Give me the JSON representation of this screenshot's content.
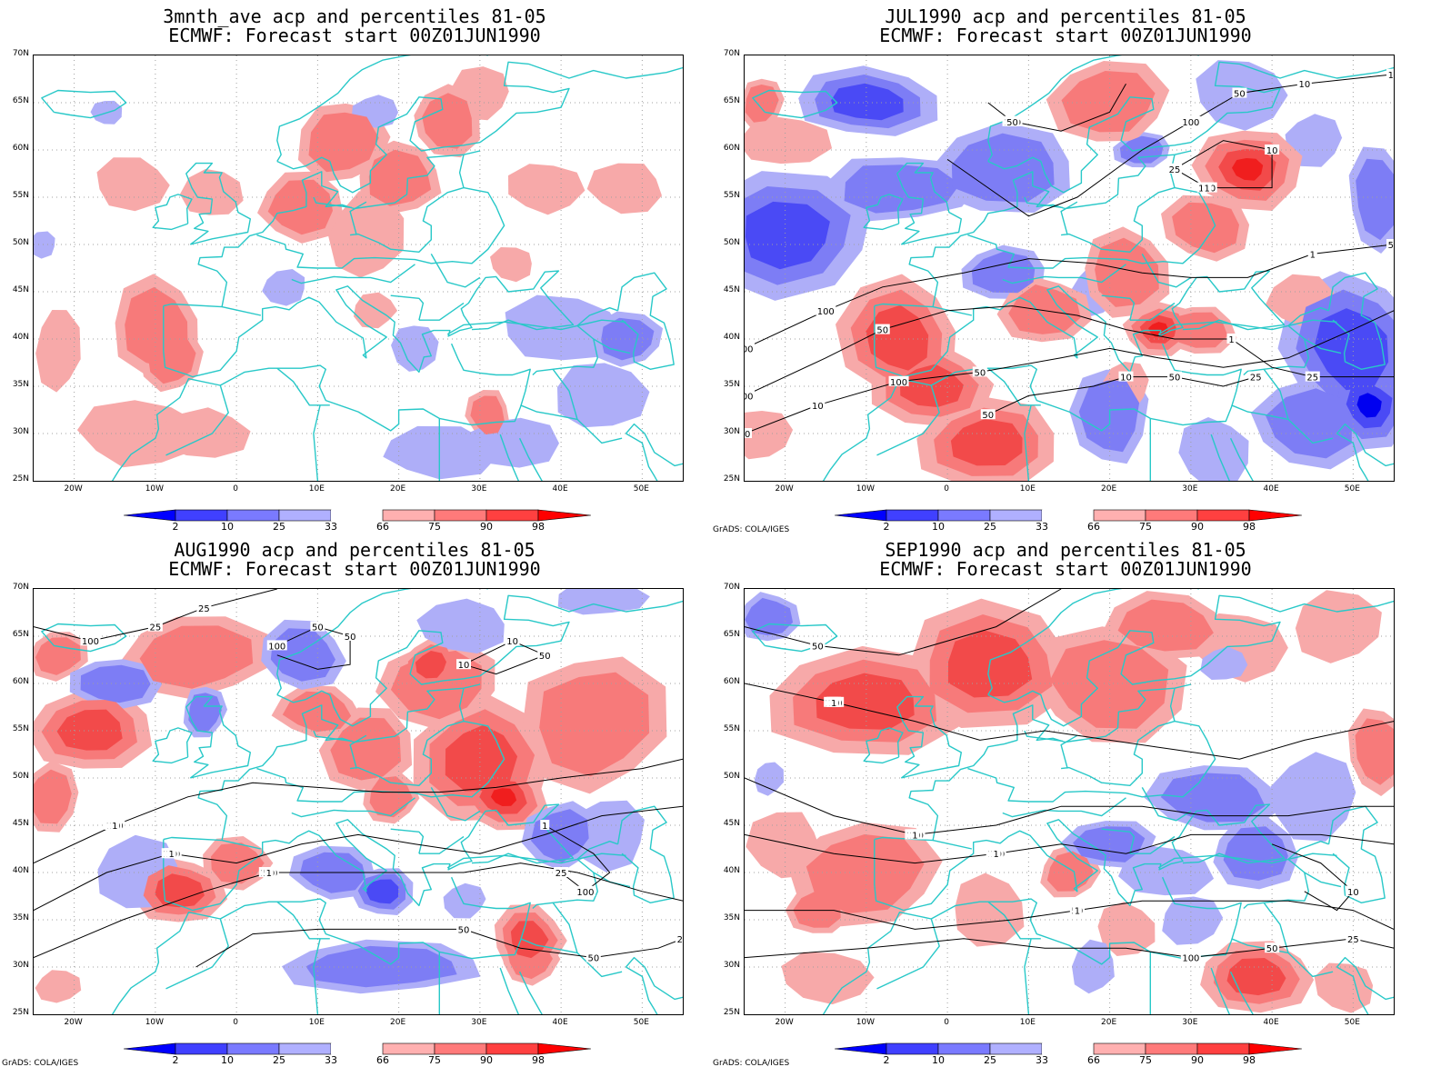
{
  "panels": [
    {
      "id": "p1",
      "title_line1": "3mnth_ave acp and percentiles 81-05",
      "title_line2": "ECMWF: Forecast start 00Z01JUN1990",
      "credit": "",
      "contour_labels": [],
      "anomaly": "ave"
    },
    {
      "id": "p2",
      "title_line1": "JUL1990 acp and percentiles 81-05",
      "title_line2": "ECMWF: Forecast start 00Z01JUN1990",
      "credit": "GrADS: COLA/IGES",
      "contour_labels": [
        "100",
        "50",
        "50",
        "50",
        "100",
        "50",
        "100",
        "100",
        "100",
        "100",
        "50",
        "50",
        "100",
        "25",
        "50",
        "25",
        "10",
        "10",
        "10",
        "10",
        "10",
        "1",
        "1",
        "10",
        "25",
        "10",
        "50",
        "1"
      ],
      "anomaly": "jul"
    },
    {
      "id": "p3",
      "title_line1": "AUG1990 acp and percentiles 81-05",
      "title_line2": "ECMWF: Forecast start 00Z01JUN1990",
      "credit": "GrADS: COLA/IGES",
      "contour_labels": [
        "50",
        "100",
        "100",
        "50",
        "100",
        "100",
        "50",
        "100",
        "100",
        "50",
        "50",
        "50",
        "50",
        "25",
        "10",
        "25",
        "10",
        "10",
        "1",
        "25",
        "50",
        "25",
        "10",
        "1",
        "1",
        "1"
      ],
      "anomaly": "aug"
    },
    {
      "id": "p4",
      "title_line1": "SEP1990 acp and percentiles 81-05",
      "title_line2": "ECMWF: Forecast start 00Z01JUN1990",
      "credit": "GrADS: COLA/IGES",
      "contour_labels": [
        "100",
        "100",
        "100",
        "50",
        "100",
        "50",
        "50",
        "25",
        "100",
        "50",
        "50",
        "50",
        "25",
        "25",
        "10",
        "10",
        "10",
        "1",
        "25",
        "50",
        "10",
        "1",
        "1",
        "1"
      ],
      "anomaly": "sep"
    }
  ],
  "map_axes": {
    "lat_labels": [
      "70N",
      "65N",
      "60N",
      "55N",
      "50N",
      "45N",
      "40N",
      "35N",
      "30N",
      "25N"
    ],
    "lon_labels": [
      "20W",
      "10W",
      "0",
      "10E",
      "20E",
      "30E",
      "40E",
      "50E"
    ]
  },
  "colorbar": {
    "labels": [
      "2",
      "10",
      "25",
      "33",
      "66",
      "75",
      "90",
      "98"
    ],
    "colors": [
      "#0000ff",
      "#4040ff",
      "#7a7aff",
      "#b0b0ff",
      "#ffffff",
      "#ffb0b0",
      "#ff7a7a",
      "#ff4040",
      "#ff0000"
    ]
  },
  "colors": {
    "coast": "#28c8c8",
    "contour": "#000000",
    "grid": "#a0a0a0",
    "blue_dark": "#0000f0",
    "blue_mid": "#4a4af5",
    "blue_light": "#7d7df5",
    "blue_pale": "#aeaef8",
    "red_pale": "#f7a9a9",
    "red_light": "#f77a7a",
    "red_mid": "#f24a4a",
    "red_dark": "#f01e1e"
  }
}
